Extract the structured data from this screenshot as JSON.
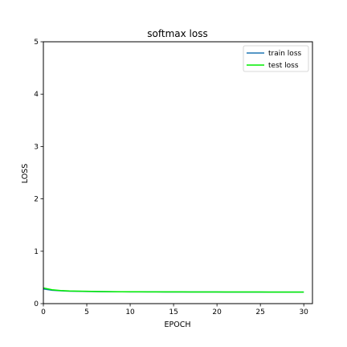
{
  "chart_data": {
    "type": "line",
    "title": "softmax loss",
    "xlabel": "EPOCH",
    "ylabel": "LOSS",
    "xlim": [
      0,
      31
    ],
    "ylim": [
      0,
      5
    ],
    "xticks": [
      0,
      5,
      10,
      15,
      20,
      25,
      30
    ],
    "yticks": [
      0,
      1,
      2,
      3,
      4,
      5
    ],
    "grid": false,
    "legend_position": "top-right",
    "x": [
      0,
      1,
      2,
      3,
      4,
      5,
      6,
      7,
      8,
      9,
      10,
      11,
      12,
      13,
      14,
      15,
      16,
      17,
      18,
      19,
      20,
      21,
      22,
      23,
      24,
      25,
      26,
      27,
      28,
      29,
      30
    ],
    "series": [
      {
        "name": "train loss",
        "color": "#1f77b4",
        "values": [
          0.28,
          0.255,
          0.245,
          0.238,
          0.235,
          0.232,
          0.23,
          0.228,
          0.227,
          0.226,
          0.225,
          0.225,
          0.224,
          0.224,
          0.223,
          0.223,
          0.223,
          0.222,
          0.222,
          0.222,
          0.222,
          0.221,
          0.221,
          0.221,
          0.221,
          0.221,
          0.22,
          0.22,
          0.22,
          0.22,
          0.22
        ]
      },
      {
        "name": "test loss",
        "color": "#00ee00",
        "values": [
          0.3,
          0.265,
          0.25,
          0.242,
          0.238,
          0.235,
          0.232,
          0.23,
          0.228,
          0.227,
          0.226,
          0.226,
          0.225,
          0.225,
          0.224,
          0.224,
          0.224,
          0.223,
          0.223,
          0.223,
          0.223,
          0.222,
          0.222,
          0.222,
          0.222,
          0.222,
          0.221,
          0.221,
          0.221,
          0.221,
          0.221
        ]
      }
    ]
  }
}
